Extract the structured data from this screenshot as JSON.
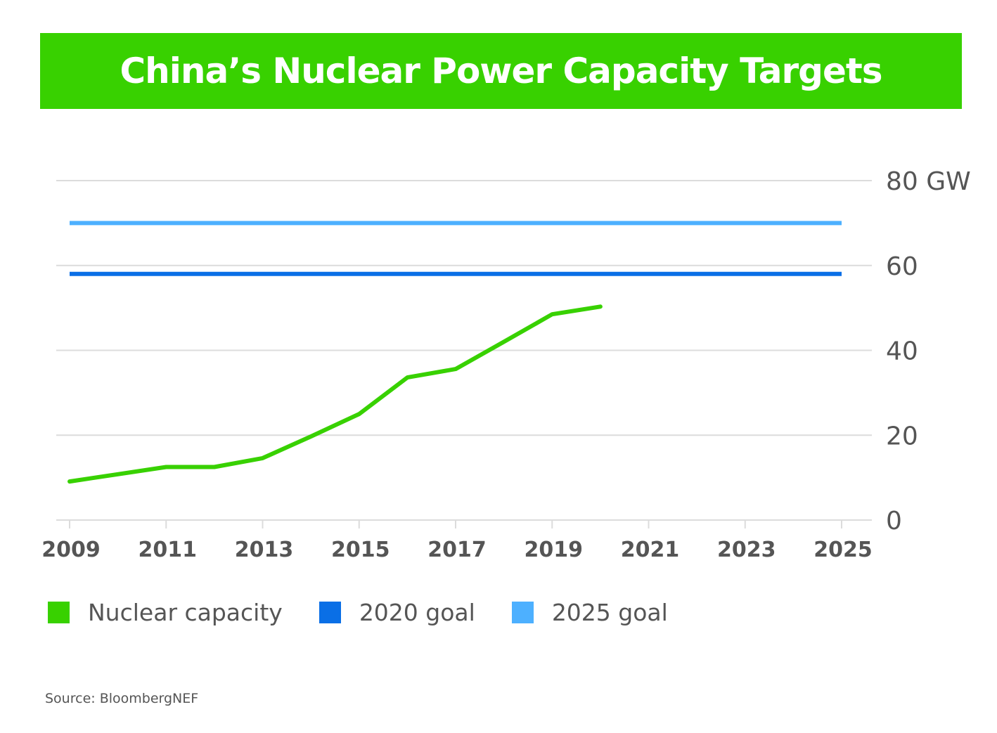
{
  "title": "China’s Nuclear Power Capacity Targets",
  "source": "Source: BloombergNEF",
  "colors": {
    "banner": "#38d100",
    "nuclear_capacity": "#38d100",
    "goal_2020": "#0a6fe6",
    "goal_2025": "#4db0ff",
    "grid": "#dcdcdc",
    "axis_text": "#555555"
  },
  "legend": [
    {
      "label": "Nuclear capacity",
      "color": "#38d100"
    },
    {
      "label": "2020 goal",
      "color": "#0a6fe6"
    },
    {
      "label": "2025 goal",
      "color": "#4db0ff"
    }
  ],
  "chart_data": {
    "type": "line",
    "title": "China’s Nuclear Power Capacity Targets",
    "xlabel": "",
    "ylabel": "",
    "xlim": [
      2009,
      2025
    ],
    "ylim": [
      0,
      80
    ],
    "x_ticks": [
      "2009",
      "2011",
      "2013",
      "2015",
      "2017",
      "2019",
      "2021",
      "2023",
      "2025"
    ],
    "y_ticks": [
      {
        "value": 0,
        "label": "0"
      },
      {
        "value": 20,
        "label": "20"
      },
      {
        "value": 40,
        "label": "40"
      },
      {
        "value": 60,
        "label": "60"
      },
      {
        "value": 80,
        "label": "80 GW"
      }
    ],
    "y_axis_side": "right",
    "grid": true,
    "legend_position": "bottom-left",
    "series": [
      {
        "name": "Nuclear capacity",
        "color": "#38d100",
        "x": [
          2009,
          2010,
          2011,
          2012,
          2013,
          2014,
          2015,
          2016,
          2017,
          2018,
          2019,
          2020
        ],
        "y": [
          9.1,
          10.8,
          12.5,
          12.5,
          14.6,
          19.7,
          25.0,
          33.6,
          35.6,
          42.0,
          48.5,
          50.3
        ]
      },
      {
        "name": "2020 goal",
        "color": "#0a6fe6",
        "x": [
          2009,
          2025
        ],
        "y": [
          58,
          58
        ]
      },
      {
        "name": "2025 goal",
        "color": "#4db0ff",
        "x": [
          2009,
          2025
        ],
        "y": [
          70,
          70
        ]
      }
    ]
  }
}
